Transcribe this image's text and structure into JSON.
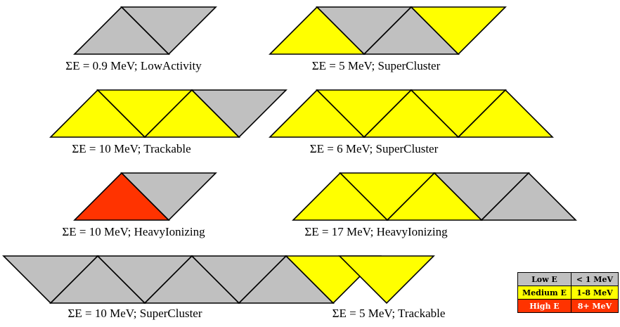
{
  "colors": {
    "low": "#c0c0c0",
    "medium": "#ffff00",
    "high": "#ff3300",
    "low_text": "#000000",
    "medium_text": "#000000",
    "high_text": "#ffffff"
  },
  "groups": [
    {
      "caption": "ΣE = 0.9 MeV; LowActivity",
      "triangles": [
        "low",
        "low"
      ]
    },
    {
      "caption": "ΣE = 5 MeV; SuperCluster",
      "triangles": [
        "medium",
        "low",
        "low",
        "medium"
      ]
    },
    {
      "caption": "ΣE = 10 MeV; Trackable",
      "triangles": [
        "medium",
        "medium",
        "medium",
        "low"
      ]
    },
    {
      "caption": "ΣE = 6 MeV; SuperCluster",
      "triangles": [
        "medium",
        "medium",
        "medium",
        "medium",
        "medium"
      ]
    },
    {
      "caption": "ΣE = 10 MeV; HeavyIonizing",
      "triangles": [
        "high",
        "low"
      ]
    },
    {
      "caption": "ΣE = 17 MeV; HeavyIonizing",
      "triangles": [
        "medium",
        "medium",
        "medium",
        "low",
        "low"
      ]
    },
    {
      "caption": "ΣE = 10 MeV; SuperCluster",
      "triangles": [
        "low",
        "low",
        "low",
        "low",
        "low",
        "low",
        "medium"
      ]
    },
    {
      "caption": "ΣE = 5 MeV; Trackable",
      "triangles": [
        "medium"
      ]
    }
  ],
  "legend": {
    "rows": [
      {
        "level": "low",
        "name": "Low E",
        "range": "< 1 MeV"
      },
      {
        "level": "medium",
        "name": "Medium E",
        "range": "1-8 MeV"
      },
      {
        "level": "high",
        "name": "High E",
        "range": "8+ MeV"
      }
    ]
  }
}
